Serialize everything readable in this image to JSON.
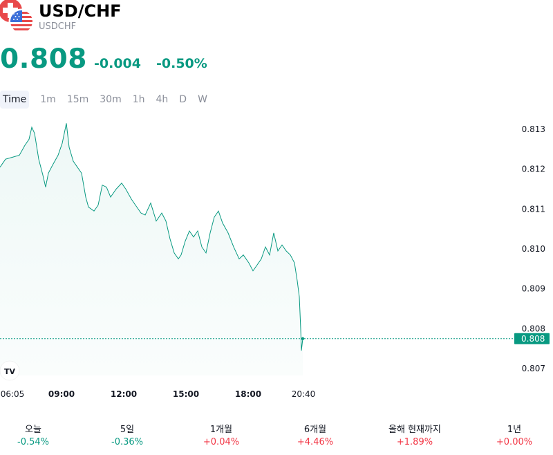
{
  "header": {
    "title": "USD/CHF",
    "subtitle": "USDCHF",
    "price": "0.808",
    "change": "-0.004",
    "change_pct": "-0.50%"
  },
  "intervals": [
    "Time",
    "1m",
    "15m",
    "30m",
    "1h",
    "4h",
    "D",
    "W"
  ],
  "colors": {
    "accent": "#089981",
    "negative_red": "#f23645",
    "muted": "#8a8e99"
  },
  "chart_data": {
    "type": "area",
    "x_ticks": [
      "06:05",
      "09:00",
      "12:00",
      "15:00",
      "18:00",
      "20:40"
    ],
    "y_ticks": [
      "0.813",
      "0.812",
      "0.811",
      "0.810",
      "0.809",
      "0.808",
      "0.807"
    ],
    "ylim": [
      0.807,
      0.813
    ],
    "last_price_label": "0.808",
    "last_value": 0.80775,
    "series": [
      {
        "values": [
          [
            0,
            0.81205
          ],
          [
            8,
            0.81225
          ],
          [
            18,
            0.8123
          ],
          [
            28,
            0.81235
          ],
          [
            36,
            0.8126
          ],
          [
            42,
            0.81275
          ],
          [
            46,
            0.81305
          ],
          [
            50,
            0.8129
          ],
          [
            56,
            0.81225
          ],
          [
            62,
            0.81185
          ],
          [
            66,
            0.81155
          ],
          [
            70,
            0.8119
          ],
          [
            76,
            0.8121
          ],
          [
            84,
            0.81235
          ],
          [
            90,
            0.81265
          ],
          [
            96,
            0.81315
          ],
          [
            100,
            0.81255
          ],
          [
            106,
            0.8122
          ],
          [
            112,
            0.81205
          ],
          [
            118,
            0.8119
          ],
          [
            124,
            0.8113
          ],
          [
            128,
            0.81105
          ],
          [
            136,
            0.81095
          ],
          [
            142,
            0.8111
          ],
          [
            148,
            0.8116
          ],
          [
            154,
            0.81155
          ],
          [
            160,
            0.8113
          ],
          [
            168,
            0.8115
          ],
          [
            176,
            0.81165
          ],
          [
            182,
            0.8115
          ],
          [
            190,
            0.81125
          ],
          [
            196,
            0.8111
          ],
          [
            204,
            0.8109
          ],
          [
            210,
            0.81085
          ],
          [
            218,
            0.81115
          ],
          [
            226,
            0.8107
          ],
          [
            234,
            0.8109
          ],
          [
            240,
            0.8107
          ],
          [
            246,
            0.81025
          ],
          [
            252,
            0.8099
          ],
          [
            258,
            0.80975
          ],
          [
            262,
            0.80985
          ],
          [
            268,
            0.8102
          ],
          [
            274,
            0.81045
          ],
          [
            280,
            0.8103
          ],
          [
            286,
            0.81045
          ],
          [
            292,
            0.81005
          ],
          [
            298,
            0.8099
          ],
          [
            304,
            0.8104
          ],
          [
            310,
            0.8108
          ],
          [
            316,
            0.81095
          ],
          [
            322,
            0.81065
          ],
          [
            330,
            0.8104
          ],
          [
            338,
            0.81005
          ],
          [
            346,
            0.80975
          ],
          [
            352,
            0.80985
          ],
          [
            360,
            0.80965
          ],
          [
            366,
            0.80945
          ],
          [
            372,
            0.8096
          ],
          [
            378,
            0.80975
          ],
          [
            384,
            0.81005
          ],
          [
            390,
            0.80985
          ],
          [
            396,
            0.8104
          ],
          [
            402,
            0.80995
          ],
          [
            408,
            0.8101
          ],
          [
            414,
            0.80995
          ],
          [
            420,
            0.80985
          ],
          [
            426,
            0.80965
          ],
          [
            430,
            0.8092
          ],
          [
            433,
            0.8088
          ],
          [
            435,
            0.808
          ],
          [
            436,
            0.80745
          ],
          [
            437,
            0.8076
          ],
          [
            438,
            0.80775
          ]
        ]
      }
    ]
  },
  "performance": [
    {
      "label": "오늘",
      "value": "-0.54%",
      "dir": "neg"
    },
    {
      "label": "5일",
      "value": "-0.36%",
      "dir": "neg"
    },
    {
      "label": "1개월",
      "value": "+0.04%",
      "dir": "pos"
    },
    {
      "label": "6개월",
      "value": "+4.46%",
      "dir": "pos"
    },
    {
      "label": "올해 현재까지",
      "value": "+1.89%",
      "dir": "pos"
    },
    {
      "label": "1년",
      "value": "+0.00%",
      "dir": "pos"
    }
  ]
}
